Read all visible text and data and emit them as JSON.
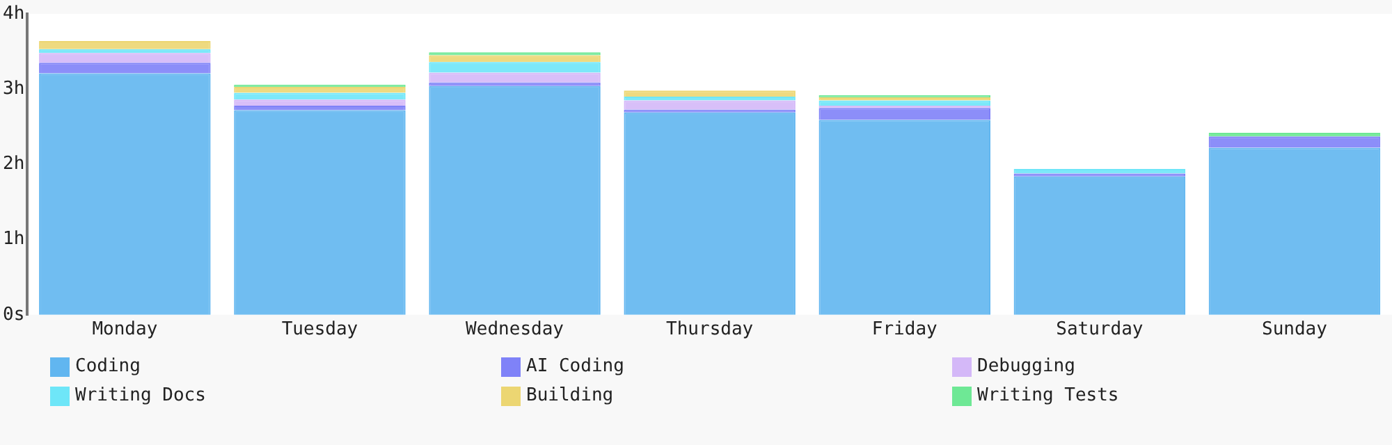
{
  "chart_data": {
    "type": "bar",
    "stacked": true,
    "categories": [
      "Monday",
      "Tuesday",
      "Wednesday",
      "Thursday",
      "Friday",
      "Saturday",
      "Sunday"
    ],
    "series": [
      {
        "name": "Coding",
        "color": "#61b6f0",
        "values": [
          3.21,
          2.72,
          3.04,
          2.69,
          2.59,
          1.84,
          2.22
        ]
      },
      {
        "name": "AI Coding",
        "color": "#7f82f8",
        "values": [
          0.14,
          0.06,
          0.05,
          0.04,
          0.16,
          0.04,
          0.15
        ]
      },
      {
        "name": "Debugging",
        "color": "#d4b8f8",
        "values": [
          0.13,
          0.08,
          0.13,
          0.12,
          0.03,
          0,
          0
        ]
      },
      {
        "name": "Writing Docs",
        "color": "#6ee6f8",
        "values": [
          0.05,
          0.09,
          0.14,
          0.05,
          0.07,
          0.06,
          0
        ]
      },
      {
        "name": "Building",
        "color": "#ecd672",
        "values": [
          0.11,
          0.08,
          0.09,
          0.08,
          0.04,
          0,
          0
        ]
      },
      {
        "name": "Writing Tests",
        "color": "#6ee895",
        "values": [
          0,
          0.03,
          0.04,
          0,
          0.03,
          0,
          0.05
        ]
      }
    ],
    "ylim": [
      0,
      4
    ],
    "yticks": [
      {
        "value": 0,
        "label": "0s"
      },
      {
        "value": 1,
        "label": "1h"
      },
      {
        "value": 2,
        "label": "2h"
      },
      {
        "value": 3,
        "label": "3h"
      },
      {
        "value": 4,
        "label": "4h"
      }
    ],
    "grid": false,
    "legend": "bottom"
  }
}
